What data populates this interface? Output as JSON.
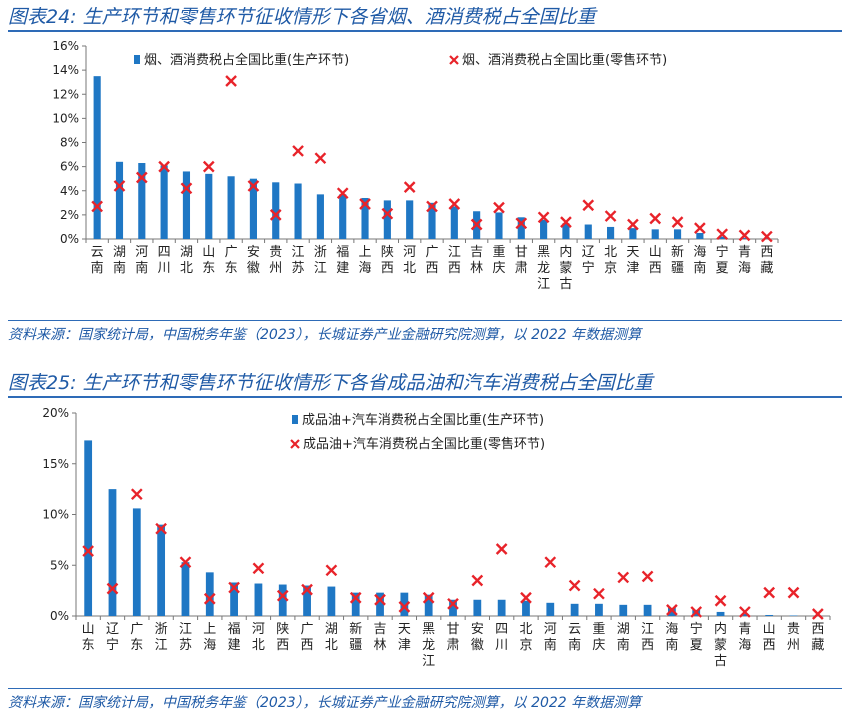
{
  "chart_data": [
    {
      "type": "bar",
      "title": "图表24: 生产环节和零售环节征收情形下各省烟、酒消费税占全国比重",
      "source": "资料来源：国家统计局，中国税务年鉴（2023），长城证券产业金融研究院测算，以 2022 年数据测算",
      "ylim": [
        0,
        16
      ],
      "yticks": [
        "0%",
        "2%",
        "4%",
        "6%",
        "8%",
        "10%",
        "12%",
        "14%",
        "16%"
      ],
      "categories": [
        "云南",
        "湖南",
        "河南",
        "四川",
        "湖北",
        "山东",
        "广东",
        "安徽",
        "贵州",
        "江苏",
        "浙江",
        "福建",
        "上海",
        "陕西",
        "河北",
        "广西",
        "江西",
        "吉林",
        "重庆",
        "甘肃",
        "黑龙江",
        "内蒙古",
        "辽宁",
        "北京",
        "天津",
        "山西",
        "新疆",
        "海南",
        "宁夏",
        "青海",
        "西藏"
      ],
      "series": [
        {
          "name": "烟、酒消费税占全国比重(生产环节)",
          "kind": "bar",
          "color": "#1f77c4",
          "values": [
            13.5,
            6.4,
            6.3,
            6.1,
            5.6,
            5.4,
            5.2,
            5.0,
            4.7,
            4.6,
            3.7,
            3.7,
            3.4,
            3.2,
            3.2,
            3.0,
            2.7,
            2.3,
            2.2,
            1.8,
            1.6,
            1.3,
            1.2,
            1.0,
            0.9,
            0.8,
            0.8,
            0.5,
            0.2,
            0.1,
            0.05
          ]
        },
        {
          "name": "烟、酒消费税占全国比重(零售环节)",
          "kind": "marker",
          "color": "#e8232a",
          "values": [
            2.7,
            4.4,
            5.1,
            6.0,
            4.2,
            6.0,
            13.1,
            4.4,
            2.0,
            7.3,
            6.7,
            3.8,
            2.9,
            2.1,
            4.3,
            2.7,
            2.9,
            1.2,
            2.6,
            1.3,
            1.8,
            1.4,
            2.8,
            1.9,
            1.2,
            1.7,
            1.4,
            0.9,
            0.4,
            0.3,
            0.2
          ]
        }
      ]
    },
    {
      "type": "bar",
      "title": "图表25: 生产环节和零售环节征收情形下各省成品油和汽车消费税占全国比重",
      "source": "资料来源：国家统计局，中国税务年鉴（2023），长城证券产业金融研究院测算，以 2022 年数据测算",
      "ylim": [
        0,
        20
      ],
      "yticks": [
        "0%",
        "5%",
        "10%",
        "15%",
        "20%"
      ],
      "categories": [
        "山东",
        "辽宁",
        "广东",
        "浙江",
        "江苏",
        "上海",
        "福建",
        "河北",
        "陕西",
        "广西",
        "湖北",
        "新疆",
        "吉林",
        "天津",
        "黑龙江",
        "甘肃",
        "安徽",
        "四川",
        "北京",
        "河南",
        "云南",
        "重庆",
        "湖南",
        "江西",
        "海南",
        "宁夏",
        "内蒙古",
        "青海",
        "山西",
        "贵州",
        "西藏"
      ],
      "series": [
        {
          "name": "成品油+汽车消费税占全国比重(生产环节)",
          "kind": "bar",
          "color": "#1f77c4",
          "values": [
            17.3,
            12.5,
            10.6,
            9.0,
            5.3,
            4.3,
            3.3,
            3.2,
            3.1,
            3.0,
            2.9,
            2.3,
            2.3,
            2.3,
            2.1,
            1.6,
            1.6,
            1.6,
            1.5,
            1.3,
            1.2,
            1.2,
            1.1,
            1.1,
            0.8,
            0.6,
            0.4,
            0.2,
            0.1,
            0.05,
            0.05
          ]
        },
        {
          "name": "成品油+汽车消费税占全国比重(零售环节)",
          "kind": "marker",
          "color": "#e8232a",
          "values": [
            6.4,
            2.7,
            12.0,
            8.6,
            5.3,
            1.7,
            2.8,
            4.7,
            2.0,
            2.6,
            4.5,
            1.8,
            1.6,
            0.9,
            1.8,
            1.2,
            3.5,
            6.6,
            1.8,
            5.3,
            3.0,
            2.2,
            3.8,
            3.9,
            0.6,
            0.4,
            1.5,
            0.4,
            2.3,
            2.3,
            0.2
          ]
        }
      ]
    }
  ]
}
